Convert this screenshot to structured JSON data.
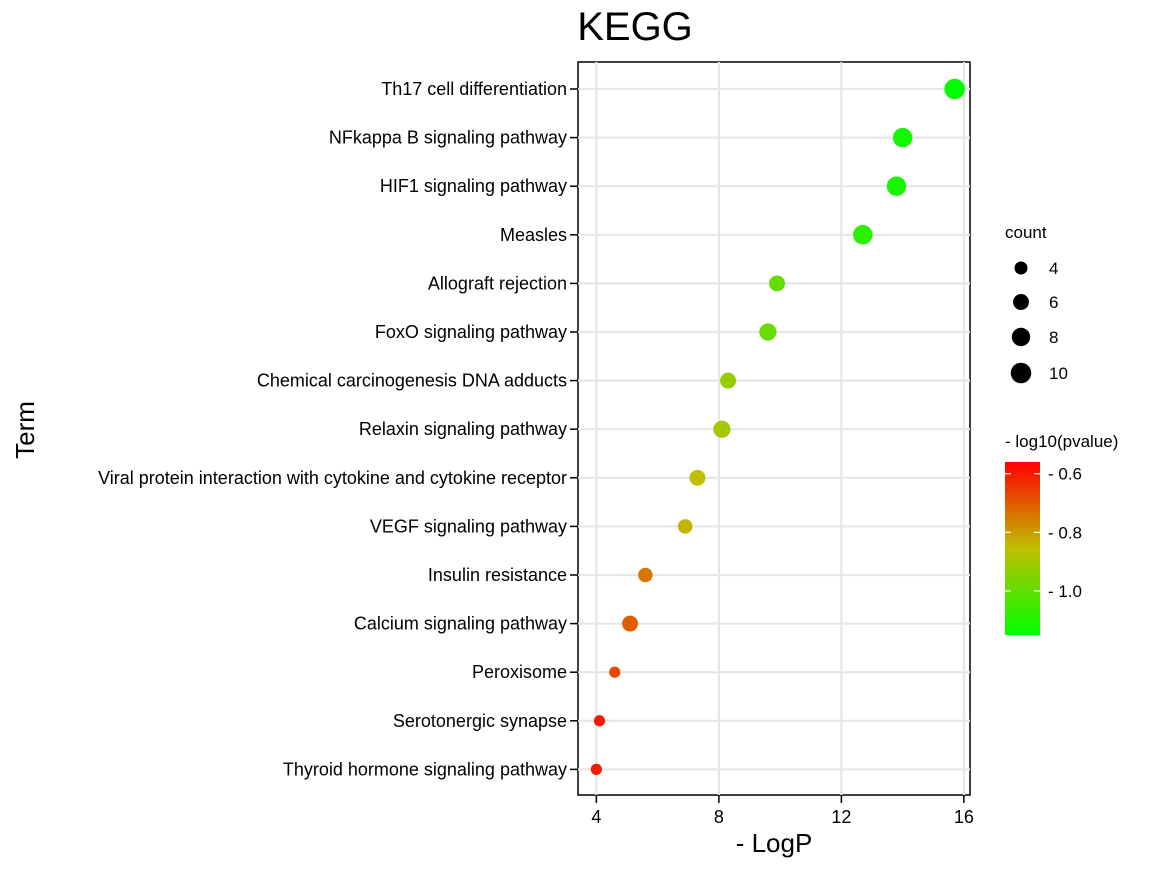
{
  "chart_data": {
    "type": "scatter",
    "title": "KEGG",
    "xlabel": "- LogP",
    "ylabel": "Term",
    "xlim": [
      3.4,
      16.2
    ],
    "xticks": [
      4,
      8,
      12,
      16
    ],
    "x_tick_labels": [
      "4",
      "8",
      "12",
      "16"
    ],
    "grid": true,
    "points": [
      {
        "term": "Th17 cell differentiation",
        "x": 15.7,
        "count": 10,
        "log10p": -1.15
      },
      {
        "term": "NFkappa B signaling pathway",
        "x": 14.0,
        "count": 9,
        "log10p": -1.12
      },
      {
        "term": "HIF1 signaling pathway",
        "x": 13.8,
        "count": 9,
        "log10p": -1.11
      },
      {
        "term": "Measles",
        "x": 12.7,
        "count": 9,
        "log10p": -1.08
      },
      {
        "term": "Allograft rejection",
        "x": 9.9,
        "count": 6,
        "log10p": -1.0
      },
      {
        "term": "FoxO signaling pathway",
        "x": 9.6,
        "count": 7,
        "log10p": -0.99
      },
      {
        "term": "Chemical carcinogenesis  DNA adducts",
        "x": 8.3,
        "count": 6,
        "log10p": -0.92
      },
      {
        "term": "Relaxin signaling pathway",
        "x": 8.1,
        "count": 7,
        "log10p": -0.9
      },
      {
        "term": "Viral protein interaction with cytokine and cytokine receptor",
        "x": 7.3,
        "count": 6,
        "log10p": -0.86
      },
      {
        "term": "VEGF signaling pathway",
        "x": 6.9,
        "count": 5,
        "log10p": -0.84
      },
      {
        "term": "Insulin resistance",
        "x": 5.6,
        "count": 5,
        "log10p": -0.74
      },
      {
        "term": "Calcium signaling pathway",
        "x": 5.1,
        "count": 6,
        "log10p": -0.7
      },
      {
        "term": "Peroxisome",
        "x": 4.6,
        "count": 3,
        "log10p": -0.67
      },
      {
        "term": "Serotonergic synapse",
        "x": 4.1,
        "count": 3,
        "log10p": -0.6
      },
      {
        "term": "Thyroid hormone signaling pathway",
        "x": 4.0,
        "count": 3,
        "log10p": -0.6
      }
    ],
    "size_legend": {
      "title": "count",
      "values": [
        4,
        6,
        8,
        10
      ],
      "labels": [
        "4",
        "6",
        "8",
        "10"
      ]
    },
    "color_legend": {
      "title": "- log10(pvalue)",
      "range": [
        -1.15,
        -0.56
      ],
      "ticks": [
        -0.6,
        -0.8,
        -1.0
      ],
      "tick_labels": [
        "- 0.6",
        "- 0.8",
        "- 1.0"
      ],
      "color_high": "#ff0000",
      "color_mid": "#bfbf00",
      "color_low": "#00ff00"
    }
  }
}
